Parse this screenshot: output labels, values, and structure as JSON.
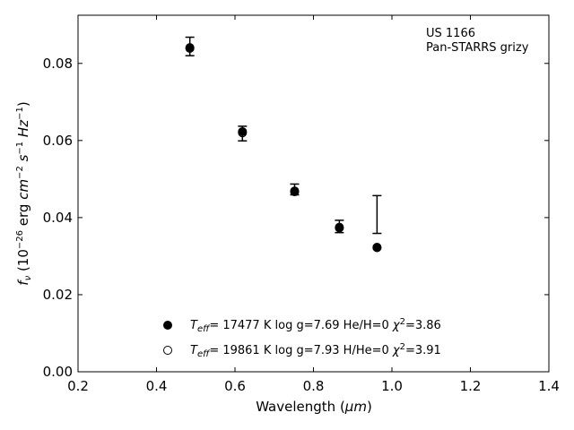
{
  "chart_data": {
    "type": "scatter",
    "title": "",
    "xlabel": "Wavelength (μm)",
    "ylabel": "fν (10⁻²⁶ erg cm⁻² s⁻¹ Hz⁻¹)",
    "xlim": [
      0.2,
      1.4
    ],
    "ylim": [
      0.0,
      0.0925
    ],
    "xticks": [
      0.2,
      0.4,
      0.6,
      0.8,
      1.0,
      1.2,
      1.4
    ],
    "xtick_labels": [
      "0.2",
      "0.4",
      "0.6",
      "0.8",
      "1.0",
      "1.2",
      "1.4"
    ],
    "yticks": [
      0.0,
      0.02,
      0.04,
      0.06,
      0.08
    ],
    "ytick_labels": [
      "0.00",
      "0.02",
      "0.04",
      "0.06",
      "0.08"
    ],
    "grid": false,
    "annotations": [
      "US 1166",
      "Pan-STARRS grizy"
    ],
    "observed": {
      "x": [
        0.485,
        0.619,
        0.752,
        0.866,
        0.962
      ],
      "y": [
        0.0844,
        0.0618,
        0.0473,
        0.0377,
        0.0408
      ],
      "yerr": [
        0.0024,
        0.0019,
        0.0014,
        0.0016,
        0.0049
      ]
    },
    "series": [
      {
        "name": "T_eff= 17477 K  log g=7.69  He/H=0  χ²=3.86",
        "marker": "filled-circle",
        "x": [
          0.485,
          0.619,
          0.752,
          0.866,
          0.962
        ],
        "y": [
          0.0841,
          0.0623,
          0.0469,
          0.0373,
          0.0323
        ]
      },
      {
        "name": "T_eff= 19861 K  log g=7.93  H/He=0  χ²=3.91",
        "marker": "open-circle",
        "x": [
          0.485,
          0.619,
          0.752,
          0.866,
          0.962
        ],
        "y": [
          0.0839,
          0.062,
          0.0467,
          0.0375,
          0.0322
        ]
      }
    ],
    "legend": {
      "placement": "lower-center",
      "entries": [
        {
          "prefix": "T",
          "sub": "eff",
          "rest": "= 17477 K  log g=7.69  He/H=0  ",
          "chi": "χ",
          "sup": "2",
          "tail": "=3.86"
        },
        {
          "prefix": "T",
          "sub": "eff",
          "rest": "= 19861 K  log g=7.93  H/He=0  ",
          "chi": "χ",
          "sup": "2",
          "tail": "=3.91"
        }
      ]
    },
    "ylabel_parts": {
      "f": "f",
      "nu": "ν",
      "open": " (10",
      "e26": "−26",
      "erg": " erg ",
      "cm": "cm",
      "e2": "−2",
      "s": " s",
      "e1": "−1",
      "hz": " Hz",
      "e1b": "−1",
      "close": ")"
    },
    "xlabel_parts": {
      "pre": "Wavelength (",
      "mu": "μm",
      "post": ")"
    }
  }
}
